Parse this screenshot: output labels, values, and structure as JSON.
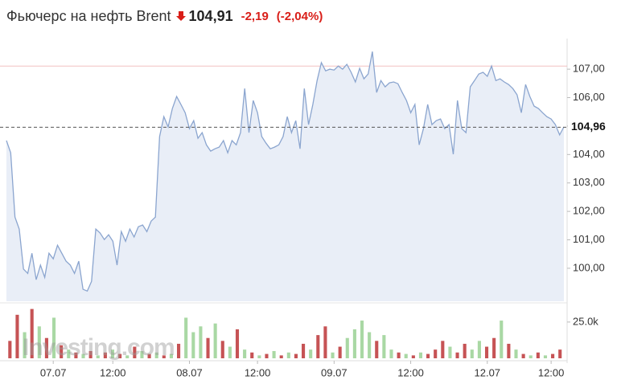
{
  "header": {
    "title": "Фьючерс на нефть Brent",
    "price": "104,91",
    "change": "-2,19",
    "change_percent": "(-2,04%)"
  },
  "chart_data": {
    "type": "area",
    "color": "#8ba5cf",
    "fill": "#e9eef7",
    "values": [
      104.49,
      104.06,
      101.8,
      101.38,
      99.97,
      99.82,
      100.53,
      99.6,
      100.11,
      99.68,
      100.53,
      100.33,
      100.81,
      100.53,
      100.25,
      100.11,
      99.82,
      100.25,
      99.26,
      99.2,
      99.54,
      101.38,
      101.24,
      101.01,
      101.18,
      100.95,
      100.11,
      101.29,
      100.95,
      101.38,
      101.1,
      101.46,
      101.52,
      101.29,
      101.66,
      101.8,
      104.63,
      105.33,
      104.97,
      105.62,
      106.04,
      105.76,
      105.47,
      104.91,
      105.19,
      104.57,
      104.77,
      104.34,
      104.12,
      104.2,
      104.26,
      104.49,
      104.06,
      104.49,
      104.34,
      104.77,
      106.32,
      104.77,
      105.9,
      105.47,
      104.63,
      104.4,
      104.2,
      104.26,
      104.34,
      104.63,
      105.33,
      104.77,
      105.19,
      104.2,
      106.32,
      105.05,
      105.76,
      106.6,
      107.23,
      106.94,
      107.0,
      106.97,
      107.11,
      107.0,
      107.17,
      106.89,
      106.55,
      107.03,
      106.66,
      106.83,
      107.62,
      106.18,
      106.6,
      106.38,
      106.52,
      106.55,
      106.49,
      106.18,
      105.9,
      105.47,
      105.76,
      104.34,
      104.91,
      105.76,
      105.05,
      105.19,
      105.25,
      104.91,
      105.05,
      104.01,
      105.9,
      104.91,
      104.77,
      106.38,
      106.6,
      106.83,
      106.89,
      106.75,
      107.11,
      106.6,
      106.66,
      106.55,
      106.46,
      106.32,
      106.1,
      105.47,
      106.46,
      106.04,
      105.7,
      105.62,
      105.47,
      105.33,
      105.25,
      105.05,
      104.69,
      104.97
    ],
    "ylim": [
      98.84,
      108.02
    ],
    "yticks": [
      {
        "value": 100,
        "label": "100,00"
      },
      {
        "value": 101,
        "label": "101,00"
      },
      {
        "value": 102,
        "label": "102,00"
      },
      {
        "value": 103,
        "label": "103,00"
      },
      {
        "value": 104,
        "label": "104,00"
      },
      {
        "value": 105,
        "label": "105,00"
      },
      {
        "value": 106,
        "label": "106,00"
      },
      {
        "value": 107,
        "label": "107,00"
      }
    ],
    "xlim": [
      0,
      131
    ],
    "xticks": [
      {
        "value": 11,
        "label": "07.07"
      },
      {
        "value": 25,
        "label": "12:00"
      },
      {
        "value": 43,
        "label": "08.07"
      },
      {
        "value": 59,
        "label": "12:00"
      },
      {
        "value": 77,
        "label": "09.07"
      },
      {
        "value": 95,
        "label": "12:00"
      },
      {
        "value": 113,
        "label": "12.07"
      },
      {
        "value": 128,
        "label": "12:00"
      }
    ],
    "current": {
      "value": 104.96,
      "label": "104,96"
    },
    "high_line": {
      "value": 107.11,
      "color": "#f2c0c0"
    },
    "watermark": "Investing.com",
    "volume": {
      "values": [
        12000,
        30000,
        18000,
        34000,
        22000,
        14000,
        28000,
        9000,
        6000,
        4000,
        3000,
        5000,
        2000,
        4000,
        6000,
        3000,
        2000,
        8000,
        5000,
        3000,
        4000,
        2000,
        3000,
        10000,
        28000,
        18000,
        22000,
        14000,
        24000,
        12000,
        8000,
        20000,
        6000,
        4000,
        2000,
        3000,
        5000,
        2000,
        4000,
        3000,
        10000,
        6000,
        16000,
        22000,
        4000,
        8000,
        14000,
        20000,
        26000,
        18000,
        12000,
        16000,
        6000,
        4000,
        3000,
        2000,
        4000,
        3000,
        6000,
        12000,
        8000,
        4000,
        10000,
        6000,
        12000,
        8000,
        14000,
        26000,
        10000,
        6000,
        3000,
        2000,
        4000,
        2000,
        3000,
        6000
      ],
      "colors": [
        "#c65355",
        "#c65355",
        "#a9d8a4",
        "#c65355",
        "#a9d8a4",
        "#c65355",
        "#a9d8a4",
        "#c65355",
        "#a9d8a4",
        "#c65355",
        "#a9d8a4",
        "#c65355",
        "#a9d8a4",
        "#c65355",
        "#a9d8a4",
        "#c65355",
        "#a9d8a4",
        "#c65355",
        "#a9d8a4",
        "#c65355",
        "#a9d8a4",
        "#c65355",
        "#a9d8a4",
        "#c65355",
        "#a9d8a4",
        "#a9d8a4",
        "#a9d8a4",
        "#c65355",
        "#a9d8a4",
        "#c65355",
        "#a9d8a4",
        "#c65355",
        "#a9d8a4",
        "#c65355",
        "#a9d8a4",
        "#c65355",
        "#a9d8a4",
        "#c65355",
        "#a9d8a4",
        "#c65355",
        "#c65355",
        "#a9d8a4",
        "#c65355",
        "#c65355",
        "#a9d8a4",
        "#c65355",
        "#a9d8a4",
        "#a9d8a4",
        "#a9d8a4",
        "#a9d8a4",
        "#c65355",
        "#a9d8a4",
        "#a9d8a4",
        "#c65355",
        "#a9d8a4",
        "#c65355",
        "#a9d8a4",
        "#c65355",
        "#c65355",
        "#c65355",
        "#a9d8a4",
        "#c65355",
        "#c65355",
        "#a9d8a4",
        "#a9d8a4",
        "#c65355",
        "#c65355",
        "#a9d8a4",
        "#c65355",
        "#a9d8a4",
        "#c65355",
        "#a9d8a4",
        "#c65355",
        "#a9d8a4",
        "#c65355",
        "#c65355"
      ],
      "ylim": [
        0,
        36000
      ],
      "yticks": [
        {
          "value": 25000,
          "label": "25.0k"
        }
      ]
    }
  }
}
